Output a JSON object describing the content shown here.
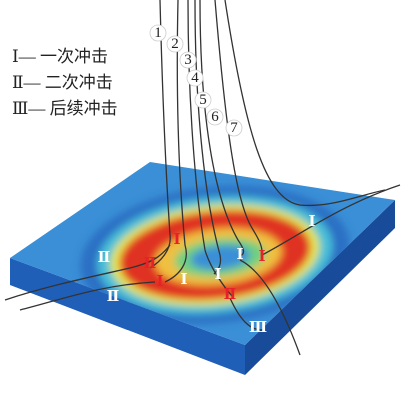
{
  "legend": [
    "Ⅰ— 一次冲击",
    "Ⅱ— 二次冲击",
    "Ⅲ— 后续冲击"
  ],
  "numbers": [
    "1",
    "2",
    "3",
    "4",
    "5",
    "6",
    "7"
  ],
  "markers": [
    "Ⅰ",
    "Ⅰ",
    "Ⅱ",
    "Ⅱ",
    "Ⅰ",
    "Ⅰ",
    "Ⅰ",
    "Ⅰ",
    "Ⅰ",
    "Ⅱ",
    "Ⅱ",
    "Ⅲ"
  ]
}
